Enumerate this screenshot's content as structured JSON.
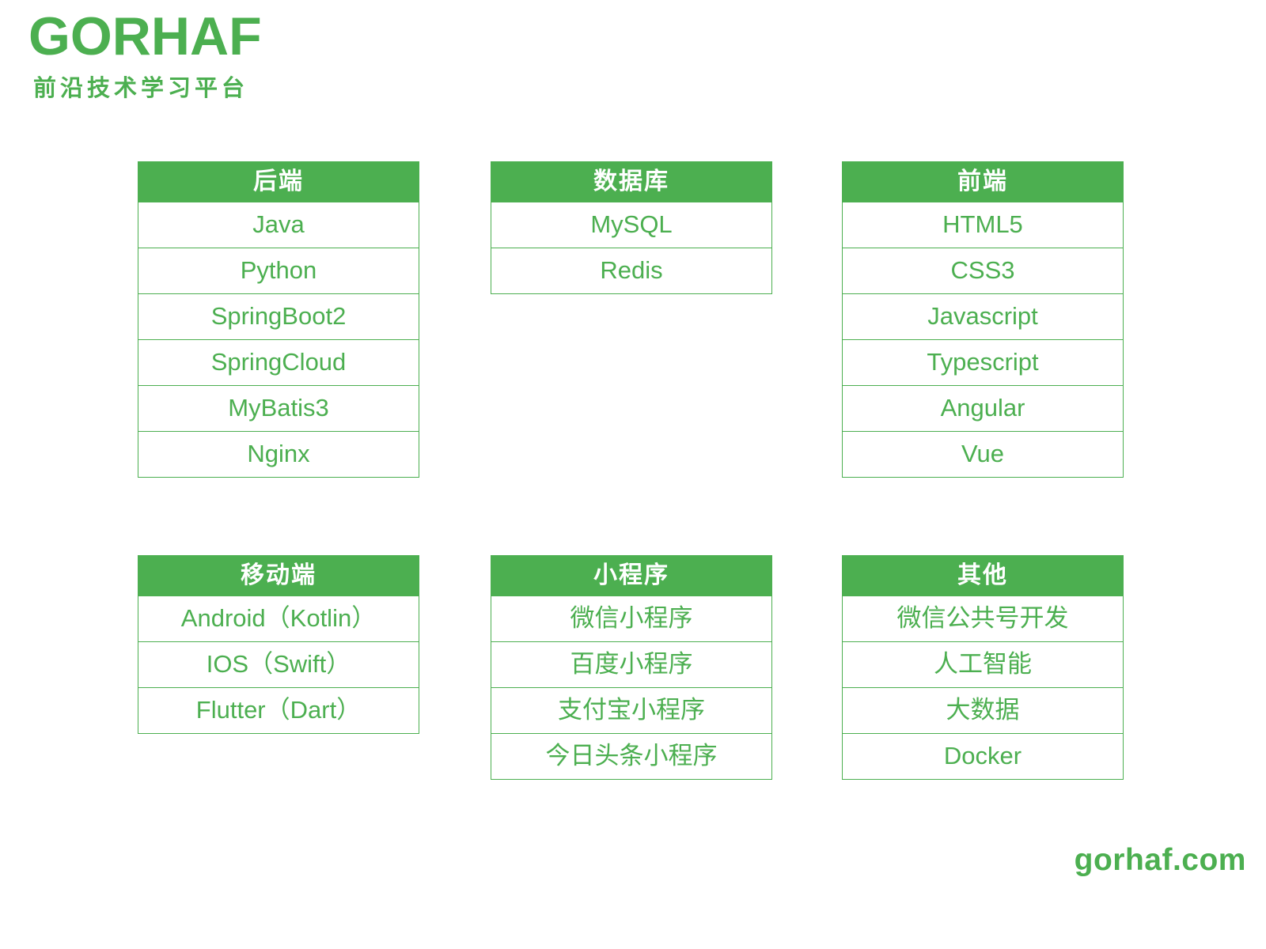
{
  "brand": {
    "logo": "GORHAF",
    "tagline": "前沿技术学习平台",
    "website": "gorhaf.com"
  },
  "colors": {
    "green": "#4CAF50",
    "white": "#FFFFFF"
  },
  "tables": [
    {
      "title": "后端",
      "items": [
        "Java",
        "Python",
        "SpringBoot2",
        "SpringCloud",
        "MyBatis3",
        "Nginx"
      ]
    },
    {
      "title": "数据库",
      "items": [
        "MySQL",
        "Redis"
      ]
    },
    {
      "title": "前端",
      "items": [
        "HTML5",
        "CSS3",
        "Javascript",
        "Typescript",
        "Angular",
        "Vue"
      ]
    },
    {
      "title": "移动端",
      "items": [
        "Android（Kotlin）",
        "IOS（Swift）",
        "Flutter（Dart）"
      ]
    },
    {
      "title": "小程序",
      "items": [
        "微信小程序",
        "百度小程序",
        "支付宝小程序",
        "今日头条小程序"
      ]
    },
    {
      "title": "其他",
      "items": [
        "微信公共号开发",
        "人工智能",
        "大数据",
        "Docker"
      ]
    }
  ]
}
